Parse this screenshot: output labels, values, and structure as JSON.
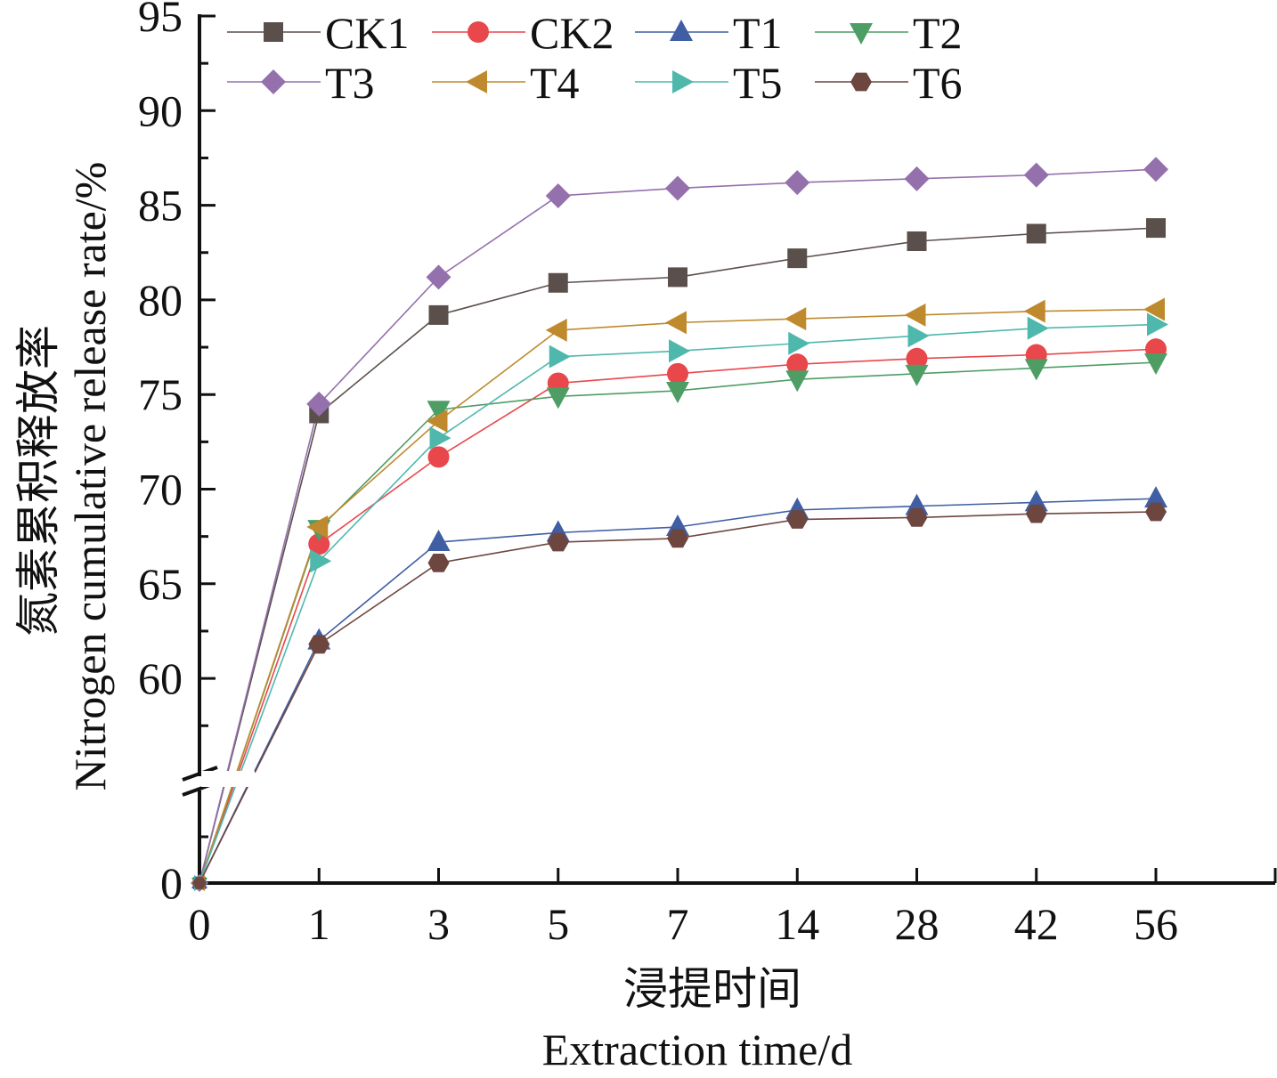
{
  "chart_data": {
    "type": "line",
    "title": "",
    "xlabel_cn": "浸提时间",
    "xlabel": "Extraction time/d",
    "ylabel_cn": "氮素累积释放率",
    "ylabel": "Nitrogen cumulative release rate/%",
    "categories": [
      "0",
      "1",
      "3",
      "5",
      "7",
      "14",
      "28",
      "42",
      "56"
    ],
    "x_axis": {
      "type": "categorical",
      "tick_labels": [
        "0",
        "1",
        "3",
        "5",
        "7",
        "14",
        "28",
        "42",
        "56"
      ]
    },
    "y_axis": {
      "broken": true,
      "lower_segment": {
        "range": [
          0,
          10
        ],
        "tick_labels": [
          "0"
        ]
      },
      "upper_segment": {
        "range": [
          55,
          95
        ],
        "tick_labels": [
          "60",
          "65",
          "70",
          "75",
          "80",
          "85",
          "90",
          "95"
        ],
        "major_step": 5,
        "minor_step": 2.5
      }
    },
    "grid": false,
    "legend": {
      "placement": "top",
      "columns": 4
    },
    "series": [
      {
        "name": "CK1",
        "marker": "square",
        "color": "#5a4f4b",
        "values": [
          0,
          74.0,
          79.2,
          80.9,
          81.2,
          82.2,
          83.1,
          83.5,
          83.8
        ]
      },
      {
        "name": "CK2",
        "marker": "circle",
        "color": "#e8474b",
        "values": [
          0,
          67.1,
          71.7,
          75.6,
          76.1,
          76.6,
          76.9,
          77.1,
          77.4
        ]
      },
      {
        "name": "T1",
        "marker": "triangle-up",
        "color": "#3f5ea3",
        "values": [
          0,
          62.0,
          67.2,
          67.7,
          68.0,
          68.9,
          69.1,
          69.3,
          69.5
        ]
      },
      {
        "name": "T2",
        "marker": "triangle-down",
        "color": "#4e9d64",
        "values": [
          0,
          67.9,
          74.2,
          74.9,
          75.2,
          75.8,
          76.1,
          76.4,
          76.7
        ]
      },
      {
        "name": "T3",
        "marker": "diamond",
        "color": "#9470ad",
        "values": [
          0,
          74.5,
          81.2,
          85.5,
          85.9,
          86.2,
          86.4,
          86.6,
          86.9
        ]
      },
      {
        "name": "T4",
        "marker": "triangle-left",
        "color": "#bf8a2e",
        "values": [
          0,
          68.0,
          73.6,
          78.4,
          78.8,
          79.0,
          79.2,
          79.4,
          79.5
        ]
      },
      {
        "name": "T5",
        "marker": "triangle-right",
        "color": "#4fb8ad",
        "values": [
          0,
          66.2,
          72.7,
          77.0,
          77.3,
          77.7,
          78.1,
          78.5,
          78.7
        ]
      },
      {
        "name": "T6",
        "marker": "hexagon",
        "color": "#6e4640",
        "values": [
          0,
          61.8,
          66.1,
          67.2,
          67.4,
          68.4,
          68.5,
          68.7,
          68.8
        ]
      }
    ]
  }
}
